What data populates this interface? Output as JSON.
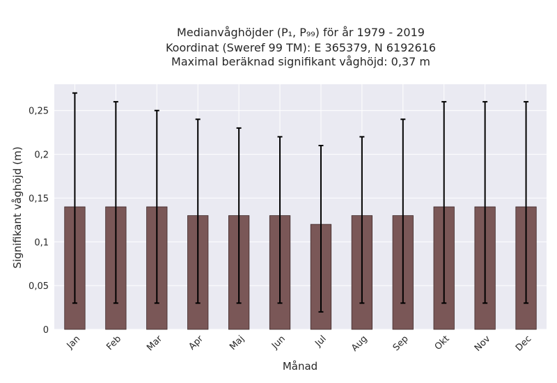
{
  "chart_data": {
    "type": "bar",
    "title_lines": [
      "Medianvåghöjder (P₁, P₉₉) för år 1979 - 2019",
      "Koordinat (Sweref 99 TM): E 365379, N 6192616",
      "Maximal beräknad signifikant våghöjd: 0,37 m"
    ],
    "xlabel": "Månad",
    "ylabel": "Signifikant våghöjd (m)",
    "categories": [
      "Jan",
      "Feb",
      "Mar",
      "Apr",
      "Maj",
      "Jun",
      "Jul",
      "Aug",
      "Sep",
      "Okt",
      "Nov",
      "Dec"
    ],
    "values": [
      0.14,
      0.14,
      0.14,
      0.13,
      0.13,
      0.13,
      0.12,
      0.13,
      0.13,
      0.14,
      0.14,
      0.14
    ],
    "p1": [
      0.03,
      0.03,
      0.03,
      0.03,
      0.03,
      0.03,
      0.02,
      0.03,
      0.03,
      0.03,
      0.03,
      0.03
    ],
    "p99": [
      0.27,
      0.26,
      0.25,
      0.24,
      0.23,
      0.22,
      0.21,
      0.22,
      0.24,
      0.26,
      0.26,
      0.26
    ],
    "ylim": [
      0,
      0.28
    ],
    "yticks": [
      0,
      0.05,
      0.1,
      0.15,
      0.2,
      0.25
    ],
    "ytick_labels": [
      "0",
      "0,05",
      "0,1",
      "0,15",
      "0,2",
      "0,25"
    ],
    "grid": true,
    "colors": {
      "bar": "#7a5757",
      "bar_edge": "#3f2a2a",
      "errorbar": "#000000",
      "plot_background": "#eaeaf2",
      "grid": "#ffffff"
    }
  }
}
